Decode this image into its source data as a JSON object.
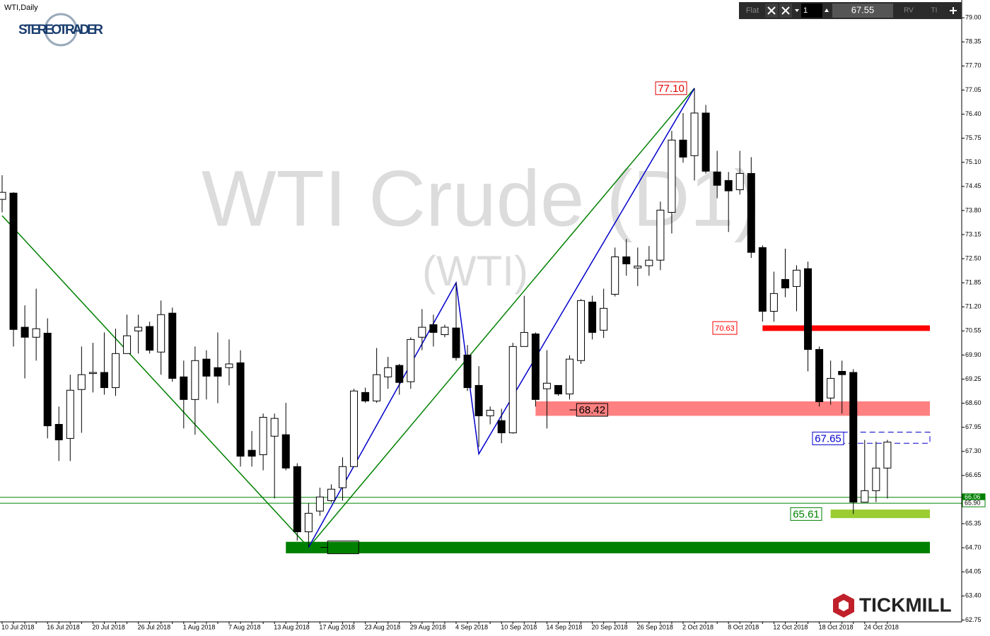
{
  "header": {
    "symbol": "WTI,Daily"
  },
  "branding": {
    "left": "STEREOTRADER",
    "right": "TICKMILL"
  },
  "toolbar": {
    "mode": "Flat",
    "quantity": "1",
    "price": "67.55",
    "buttons": [
      "RV",
      "TI"
    ]
  },
  "chart_data": {
    "type": "candlestick",
    "title": "WTI Crude (D1)",
    "subtitle": "(WTI)",
    "categories": [
      "10 Jul 2018",
      null,
      null,
      null,
      "16 Jul 2018",
      null,
      null,
      null,
      "20 Jul 2018",
      null,
      null,
      null,
      "26 Jul 2018",
      null,
      null,
      null,
      "1 Aug 2018",
      null,
      null,
      null,
      "7 Aug 2018",
      null,
      null,
      null,
      "13 Aug 2018",
      null,
      null,
      null,
      "17 Aug 2018",
      null,
      null,
      null,
      "23 Aug 2018",
      null,
      null,
      null,
      "29 Aug 2018",
      null,
      null,
      null,
      "4 Sep 2018",
      null,
      null,
      null,
      "10 Sep 2018",
      null,
      null,
      null,
      "14 Sep 2018",
      null,
      null,
      null,
      "20 Sep 2018",
      null,
      null,
      null,
      "26 Sep 2018",
      null,
      null,
      null,
      "2 Oct 2018",
      null,
      null,
      null,
      "8 Oct 2018",
      null,
      null,
      null,
      "12 Oct 2018",
      null,
      null,
      null,
      "18 Oct 2018",
      null,
      null,
      null,
      "24 Oct 2018",
      null,
      null
    ],
    "open": [
      74.1,
      74.27,
      70.65,
      70.38,
      70.49,
      68.03,
      67.65,
      68.97,
      69.4,
      69.43,
      69.02,
      69.94,
      70.55,
      70.67,
      69.98,
      71.03,
      69.31,
      68.7,
      69.79,
      69.56,
      69.56,
      69.69,
      67.33,
      67.21,
      67.71,
      67.75,
      66.89,
      65.13,
      65.69,
      65.97,
      66.32,
      66.89,
      68.89,
      68.66,
      69.31,
      69.62,
      69.18,
      70.38,
      70.72,
      70.45,
      70.63,
      69.9,
      69.08,
      68.26,
      68.13,
      67.8,
      70.13,
      70.47,
      68.99,
      69.08,
      68.85,
      69.75,
      71.33,
      70.57,
      71.54,
      72.55,
      72.25,
      72.31,
      72.46,
      73.75,
      75.7,
      75.28,
      76.43,
      74.84,
      74.61,
      74.36,
      74.8,
      72.8,
      71.08,
      71.94,
      71.75,
      72.23,
      70.05,
      68.74,
      69.46,
      69.43,
      65.93,
      66.24,
      66.85
    ],
    "high": [
      74.75,
      74.29,
      71.24,
      71.69,
      70.89,
      68.51,
      69.37,
      70.13,
      70.23,
      70.51,
      70.61,
      70.99,
      70.99,
      70.8,
      71.37,
      71.18,
      69.75,
      70.13,
      70.03,
      70.51,
      70.32,
      70.03,
      67.85,
      68.32,
      68.32,
      68.61,
      66.98,
      65.9,
      66.32,
      66.41,
      67.14,
      68.99,
      69.02,
      70.09,
      69.85,
      69.66,
      70.38,
      71.14,
      70.99,
      70.72,
      71.85,
      70.17,
      69.6,
      68.51,
      68.45,
      70.23,
      71.5,
      70.51,
      70.03,
      69.08,
      69.89,
      71.41,
      71.5,
      71.69,
      72.8,
      73.03,
      72.8,
      72.84,
      74.04,
      75.95,
      76.43,
      77.1,
      76.65,
      75.41,
      74.84,
      75.41,
      75.24,
      72.86,
      72.15,
      72.77,
      72.32,
      72.42,
      70.13,
      69.75,
      69.75,
      69.52,
      67.61,
      67.56,
      67.61
    ],
    "low": [
      73.75,
      70.13,
      69.27,
      69.75,
      67.65,
      67.04,
      67.04,
      67.8,
      68.89,
      68.83,
      68.8,
      69.94,
      69.94,
      69.94,
      69.37,
      69.18,
      67.92,
      67.75,
      68.7,
      68.6,
      69.08,
      66.89,
      66.89,
      66.79,
      66.03,
      66.79,
      64.89,
      64.71,
      65.56,
      65.93,
      65.97,
      66.89,
      68.61,
      68.61,
      68.99,
      68.83,
      68.99,
      70.03,
      70.13,
      70.38,
      69.75,
      68.93,
      67.42,
      68.03,
      67.52,
      67.78,
      70.13,
      68.51,
      67.92,
      68.8,
      68.7,
      69.66,
      70.32,
      70.36,
      71.48,
      72.04,
      71.76,
      72.04,
      72.19,
      73.18,
      75.09,
      74.61,
      74.8,
      74.13,
      73.22,
      74.23,
      72.52,
      70.8,
      70.8,
      71.46,
      71.08,
      69.46,
      68.51,
      68.56,
      68.32,
      65.61,
      65.93,
      65.93,
      66.03
    ],
    "close": [
      74.29,
      70.59,
      70.38,
      70.61,
      67.99,
      67.61,
      68.95,
      69.37,
      69.43,
      69.02,
      69.94,
      70.42,
      70.65,
      70.03,
      70.99,
      69.27,
      68.7,
      69.75,
      69.33,
      69.33,
      69.66,
      67.17,
      67.17,
      68.22,
      68.19,
      66.85,
      65.13,
      65.63,
      66.07,
      66.28,
      66.89,
      68.93,
      68.66,
      69.37,
      69.56,
      69.16,
      70.32,
      70.65,
      70.51,
      70.65,
      69.83,
      69.02,
      68.26,
      68.41,
      67.8,
      70.13,
      70.51,
      68.7,
      69.14,
      68.85,
      69.79,
      71.37,
      70.51,
      71.16,
      72.55,
      72.36,
      72.3,
      72.46,
      73.81,
      75.7,
      75.24,
      76.43,
      74.86,
      74.48,
      74.33,
      74.8,
      72.67,
      71.08,
      71.56,
      71.71,
      72.19,
      70.05,
      68.64,
      69.27,
      69.37,
      65.93,
      66.24,
      66.85,
      67.55
    ],
    "up_color": "#ffffff",
    "down_color": "#000000",
    "ylim": [
      62.7,
      79.48
    ],
    "yticks": [
      {
        "value": 79,
        "label": "79.00"
      },
      {
        "value": 78.35,
        "label": "78.35"
      },
      {
        "value": 77.7,
        "label": "77.70"
      },
      {
        "value": 77.05,
        "label": "77.05"
      },
      {
        "value": 76.4,
        "label": "76.40"
      },
      {
        "value": 75.75,
        "label": "75.75"
      },
      {
        "value": 75.1,
        "label": "75.10"
      },
      {
        "value": 74.45,
        "label": "74.45"
      },
      {
        "value": 73.8,
        "label": "73.80"
      },
      {
        "value": 73.15,
        "label": "73.15"
      },
      {
        "value": 72.5,
        "label": "72.50"
      },
      {
        "value": 71.85,
        "label": "71.85"
      },
      {
        "value": 71.2,
        "label": "71.20"
      },
      {
        "value": 70.55,
        "label": "70.55"
      },
      {
        "value": 69.9,
        "label": "69.90"
      },
      {
        "value": 69.25,
        "label": "69.25"
      },
      {
        "value": 68.6,
        "label": "68.60"
      },
      {
        "value": 67.95,
        "label": "67.95"
      },
      {
        "value": 67.3,
        "label": "67.30"
      },
      {
        "value": 66.65,
        "label": "66.65"
      },
      {
        "value": 66,
        "label": "66.00"
      },
      {
        "value": 65.35,
        "label": "65.35"
      },
      {
        "value": 64.7,
        "label": "64.70"
      },
      {
        "value": 64.05,
        "label": "64.05"
      },
      {
        "value": 63.4,
        "label": "63.40"
      },
      {
        "value": 62.75,
        "label": "62.75"
      }
    ],
    "grid": false,
    "axis_tags": [
      {
        "value": 66.06,
        "label": "66.06",
        "color": "#008000"
      },
      {
        "value": 65.9,
        "label": "65.90",
        "color": "#008000"
      }
    ],
    "annotations": [
      {
        "value": 77.1,
        "label": "77.10",
        "kind": "tag",
        "color": "#e00000"
      },
      {
        "value": 70.63,
        "label": "70.63",
        "kind": "bar",
        "color": "#ff0000",
        "zone": [
          70.55,
          70.7
        ]
      },
      {
        "value": 68.42,
        "label": "68.42",
        "kind": "zone",
        "color": "#ff8080",
        "zone": [
          68.26,
          68.65
        ]
      },
      {
        "value": 67.65,
        "label": "67.65",
        "kind": "box",
        "color": "#0000cc",
        "zone": [
          67.52,
          67.82
        ]
      },
      {
        "value": 65.61,
        "label": "65.61",
        "kind": "zone",
        "color": "#9acd32",
        "zone": [
          65.5,
          65.73
        ]
      },
      {
        "value": 64.71,
        "label": "64.71",
        "kind": "zone",
        "color": "#008000",
        "zone": [
          64.55,
          64.86
        ]
      }
    ],
    "trendlines": [
      {
        "color": "#008000",
        "values": [
          73.66,
          64.71,
          77.1
        ]
      },
      {
        "color": "#0000cc",
        "values": [
          64.71,
          71.85,
          67.23,
          77.1
        ]
      }
    ]
  }
}
